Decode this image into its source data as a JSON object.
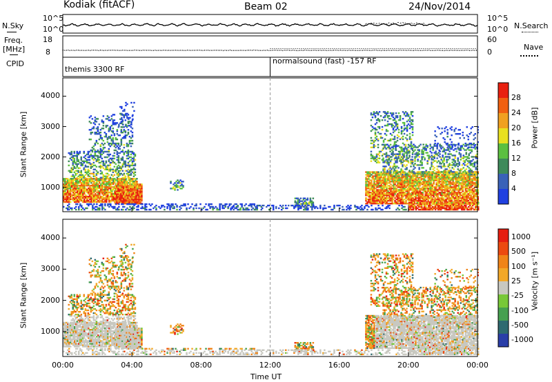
{
  "header": {
    "station": "Kodiak (fitACF)",
    "beam": "Beam 02",
    "date": "24/Nov/2014"
  },
  "colors": {
    "power_scale": [
      "#2040e0",
      "#3a62b8",
      "#3e8a5a",
      "#5cc040",
      "#e8e020",
      "#f0a020",
      "#f06010",
      "#e82010"
    ],
    "velocity_scale": [
      "#2a3ea8",
      "#2e6a70",
      "#46a050",
      "#78c838",
      "#c8c8c0",
      "#f2a828",
      "#f08418",
      "#ec4a10",
      "#e61e10"
    ],
    "sky_line": "#000000",
    "divider": "#999999"
  },
  "top_panels": {
    "nsky_label": "N.Sky",
    "nsearch_label": "N.Search",
    "nsky_ticks": [
      "10^5",
      "10^0"
    ],
    "nsearch_ticks": [
      "10^5",
      "10^0"
    ],
    "freq_label": "Freq.",
    "freq_unit": "[MHz]",
    "freq_ticks": [
      "18",
      "8"
    ],
    "nave_label": "Nave",
    "nave_ticks": [
      "60",
      "0"
    ],
    "cpid_label": "CPID",
    "cpid_modes": [
      {
        "text": "themis 3300 RF"
      },
      {
        "text": "normalsound (fast) -157 RF"
      }
    ]
  },
  "chart_data": [
    {
      "type": "heatmap",
      "name": "Power",
      "ylabel": "Slant Range [km]",
      "yticks": [
        "4000",
        "3000",
        "2000",
        "1000"
      ],
      "ylim": [
        200,
        4600
      ],
      "colorbar_label": "Power [dB]",
      "colorbar_ticks": [
        "28",
        "24",
        "20",
        "16",
        "12",
        "8",
        "4"
      ],
      "clim": [
        0,
        32
      ]
    },
    {
      "type": "heatmap",
      "name": "Velocity",
      "ylabel": "Slant Range [km]",
      "yticks": [
        "4000",
        "3000",
        "2000",
        "1000"
      ],
      "ylim": [
        200,
        4600
      ],
      "colorbar_label": "Velocity [m s⁻¹]",
      "colorbar_ticks": [
        "1000",
        "500",
        "100",
        "25",
        "-25",
        "-100",
        "-500",
        "-1000"
      ]
    }
  ],
  "time_axis": {
    "label": "Time UT",
    "ticks": [
      "00:00",
      "04:00",
      "08:00",
      "12:00",
      "16:00",
      "20:00",
      "00:00"
    ],
    "xlim_hours": [
      0,
      24
    ]
  }
}
